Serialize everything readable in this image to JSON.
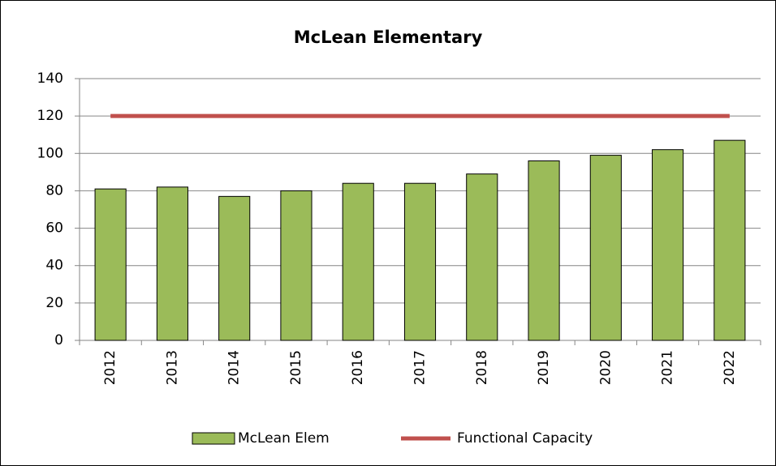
{
  "chart_data": {
    "type": "bar",
    "title": "McLean Elementary",
    "categories": [
      "2012",
      "2013",
      "2014",
      "2015",
      "2016",
      "2017",
      "2018",
      "2019",
      "2020",
      "2021",
      "2022"
    ],
    "series": [
      {
        "name": "McLean Elem",
        "type": "bar",
        "color": "#9bbb59",
        "values": [
          81,
          82,
          77,
          80,
          84,
          84,
          89,
          96,
          99,
          102,
          107
        ]
      },
      {
        "name": "Functional Capacity",
        "type": "line",
        "color": "#c0504d",
        "values": [
          120,
          120,
          120,
          120,
          120,
          120,
          120,
          120,
          120,
          120,
          120
        ]
      }
    ],
    "ylim": [
      0,
      140
    ],
    "yticks": [
      0,
      20,
      40,
      60,
      80,
      100,
      120,
      140
    ],
    "grid": true,
    "legend": "bottom"
  }
}
